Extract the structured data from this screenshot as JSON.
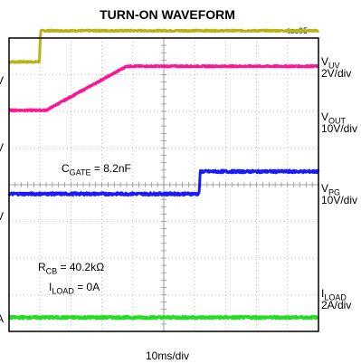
{
  "chart_data": {
    "type": "line",
    "title": "TURN-ON WAVEFORM",
    "figure_id": "toc05",
    "xlabel": "10ms/div",
    "grid": true,
    "x_divisions": 10,
    "y_divisions": 8,
    "x_unit": "ms",
    "time_per_div": 10,
    "xlim": [
      0,
      100
    ],
    "series": [
      {
        "name": "VUV",
        "label_main": "V",
        "label_sub": "UV",
        "scale": "2V/div",
        "color": "#b9b31a",
        "noise": 0.02,
        "points": [
          [
            0,
            3.35
          ],
          [
            9.8,
            3.35
          ],
          [
            10.2,
            4.2
          ],
          [
            100,
            4.2
          ]
        ]
      },
      {
        "name": "VOUT",
        "label_main": "V",
        "label_sub": "OUT",
        "scale": "10V/div",
        "color": "#ff1493",
        "noise": 0.02,
        "points": [
          [
            0,
            2.03
          ],
          [
            12,
            2.03
          ],
          [
            38,
            3.23
          ],
          [
            100,
            3.23
          ]
        ]
      },
      {
        "name": "VPG",
        "label_main": "V",
        "label_sub": "PG",
        "scale": "10V/div",
        "color": "#1a1aff",
        "noise": 0.035,
        "points": [
          [
            0,
            -0.25
          ],
          [
            61.4,
            -0.25
          ],
          [
            61.8,
            0.36
          ],
          [
            100,
            0.36
          ]
        ]
      },
      {
        "name": "ILOAD",
        "label_main": "I",
        "label_sub": "LOAD",
        "scale": "2A/div",
        "color": "#22dd22",
        "noise": 0.035,
        "points": [
          [
            0,
            -3.62
          ],
          [
            100,
            -3.62
          ]
        ]
      }
    ],
    "annotations": [
      {
        "main": "C",
        "sub": "GATE",
        "rest": " = 8.2nF"
      },
      {
        "main": "R",
        "sub": "CB",
        "rest": " = 40.2kΩ"
      },
      {
        "main": "I",
        "sub": "LOAD",
        "rest": " = 0A"
      }
    ],
    "cut_marks": [
      "V",
      "V",
      "V",
      "A"
    ]
  }
}
